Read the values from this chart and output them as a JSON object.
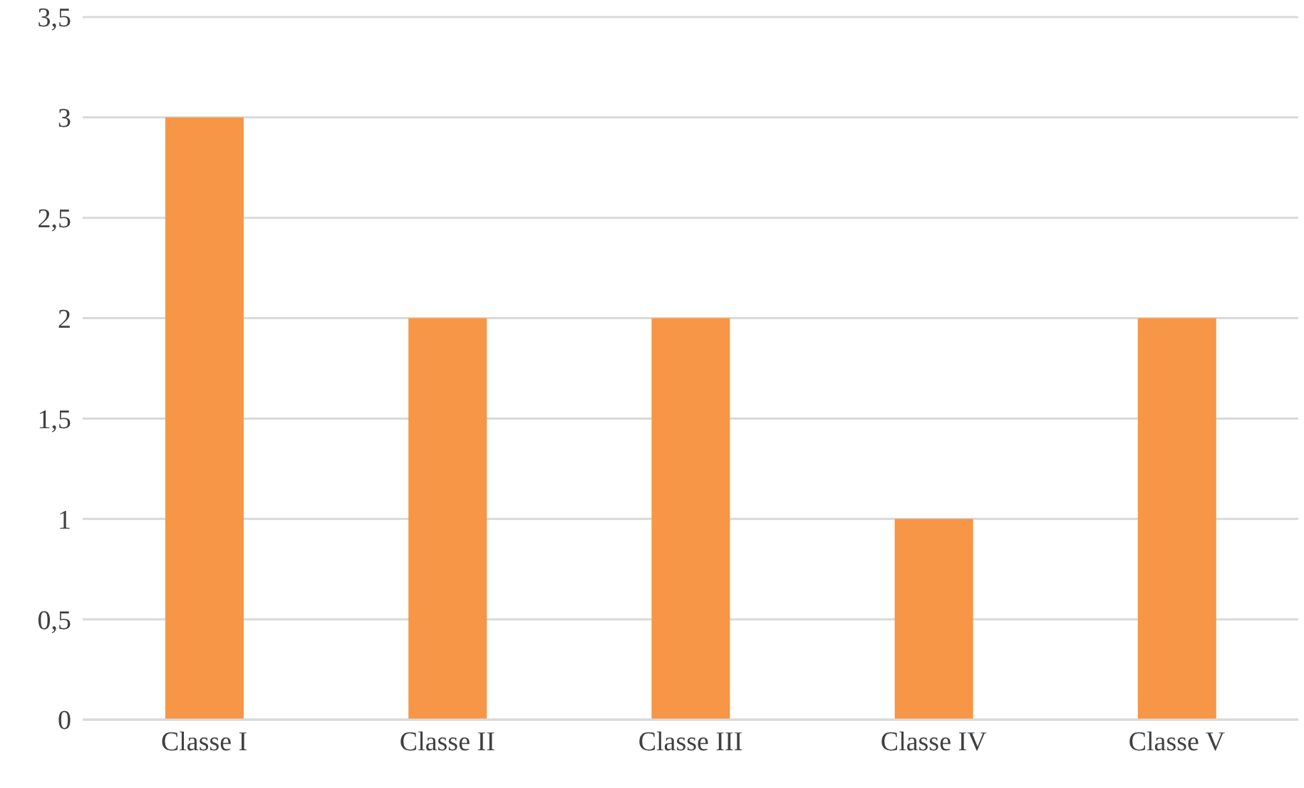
{
  "chart_data": {
    "type": "bar",
    "categories": [
      "Classe I",
      "Classe II",
      "Classe III",
      "Classe IV",
      "Classe V"
    ],
    "values": [
      3,
      2,
      2,
      1,
      2
    ],
    "color": "#f79646",
    "ylim": [
      0,
      3.5
    ],
    "yticks": [
      0,
      {
        "value": 0.5,
        "label": "0,5"
      },
      1,
      {
        "value": 1.5,
        "label": "1,5"
      },
      2,
      {
        "value": 2.5,
        "label": "2,5"
      },
      3,
      {
        "value": 3.5,
        "label": "3,5"
      }
    ],
    "grid": "y"
  }
}
